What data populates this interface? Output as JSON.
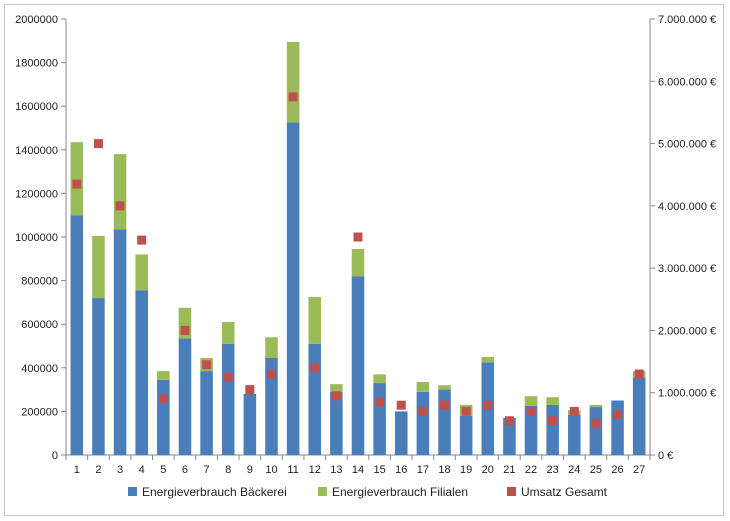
{
  "chart_data": {
    "type": "bar",
    "stacked": true,
    "categories": [
      "1",
      "2",
      "3",
      "4",
      "5",
      "6",
      "7",
      "8",
      "9",
      "10",
      "11",
      "12",
      "13",
      "14",
      "15",
      "16",
      "17",
      "18",
      "19",
      "20",
      "21",
      "22",
      "23",
      "24",
      "25",
      "26",
      "27"
    ],
    "series": [
      {
        "name": "Energieverbrauch Bäckerei",
        "axis": "left",
        "color": "#4a7ebb",
        "values": [
          1100000,
          720000,
          1035000,
          755000,
          345000,
          535000,
          385000,
          510000,
          280000,
          445000,
          1525000,
          510000,
          290000,
          820000,
          330000,
          200000,
          290000,
          300000,
          180000,
          425000,
          170000,
          225000,
          230000,
          185000,
          220000,
          250000,
          355000
        ]
      },
      {
        "name": "Energieverbrauch Filialen",
        "axis": "left",
        "color": "#9bbb59",
        "values": [
          335000,
          285000,
          345000,
          165000,
          40000,
          140000,
          60000,
          100000,
          0,
          95000,
          370000,
          215000,
          35000,
          125000,
          40000,
          0,
          45000,
          20000,
          50000,
          25000,
          0,
          45000,
          35000,
          20000,
          10000,
          0,
          30000
        ]
      },
      {
        "name": "Umsatz Gesamt",
        "axis": "right",
        "type": "scatter",
        "color": "#c0504d",
        "values": [
          4350000,
          5000000,
          4000000,
          3450000,
          900000,
          2000000,
          1450000,
          1250000,
          1050000,
          1300000,
          5750000,
          1400000,
          950000,
          3500000,
          850000,
          800000,
          700000,
          800000,
          700000,
          800000,
          550000,
          700000,
          550000,
          700000,
          500000,
          650000,
          1300000
        ]
      }
    ],
    "y_left": {
      "min": 0,
      "max": 2000000,
      "step": 200000,
      "tick_labels": [
        "0",
        "200000",
        "400000",
        "600000",
        "800000",
        "1000000",
        "1200000",
        "1400000",
        "1600000",
        "1800000",
        "2000000"
      ]
    },
    "y_right": {
      "min": 0,
      "max": 7000000,
      "step": 1000000,
      "tick_labels": [
        "0 €",
        "1.000.000 €",
        "2.000.000 €",
        "3.000.000 €",
        "4.000.000 €",
        "5.000.000 €",
        "6.000.000 €",
        "7.000.000 €"
      ]
    },
    "grid": false,
    "legend": {
      "position": "bottom",
      "entries": [
        "Energieverbrauch Bäckerei",
        "Energieverbrauch Filialen",
        "Umsatz Gesamt"
      ]
    },
    "title": "",
    "xlabel": "",
    "ylabel": ""
  }
}
